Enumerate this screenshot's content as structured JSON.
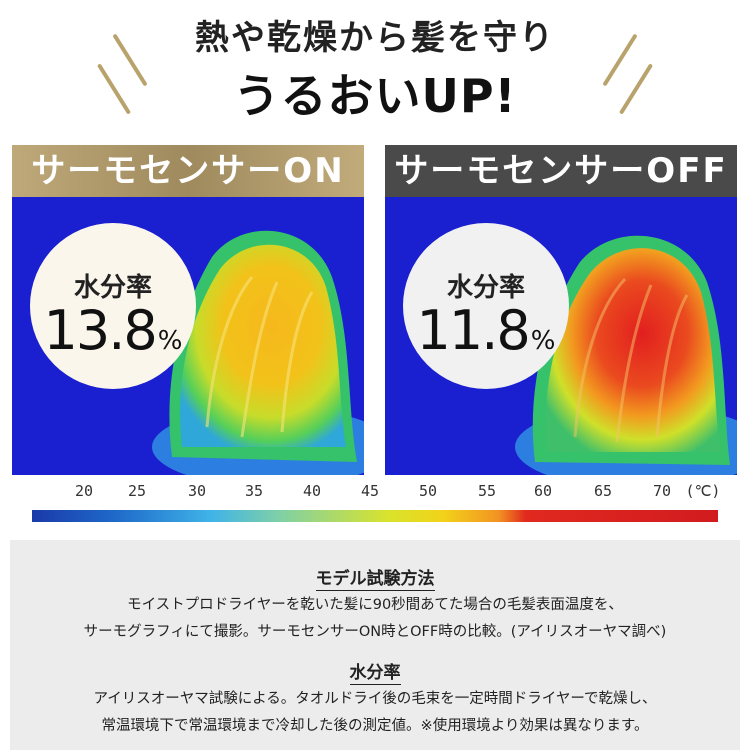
{
  "headline": {
    "line1": "熱や乾燥から髪を守り",
    "line2": "うるおいUP!"
  },
  "panels": [
    {
      "banner": "サーモセンサーON",
      "label": "水分率",
      "value": "13.8",
      "unit": "%"
    },
    {
      "banner": "サーモセンサーOFF",
      "label": "水分率",
      "value": "11.8",
      "unit": "%"
    }
  ],
  "scale": {
    "ticks": [
      "20",
      "25",
      "30",
      "35",
      "40",
      "45",
      "50",
      "55",
      "60",
      "65",
      "70"
    ],
    "unit": "(℃)"
  },
  "info": {
    "method_title": "モデル試験方法",
    "method_line1": "モイストプロドライヤーを乾いた髪に90秒間あてた場合の毛髪表面温度を、",
    "method_line2": "サーモグラフィにて撮影。サーモセンサーON時とOFF時の比較。(アイリスオーヤマ調べ)",
    "moisture_title": "水分率",
    "moisture_line1": "アイリスオーヤマ試験による。タオルドライ後の毛束を一定時間ドライヤーで乾燥し、",
    "moisture_line2": "常温環境下で常温環境まで冷却した後の測定値。※使用環境より効果は異なります。"
  }
}
